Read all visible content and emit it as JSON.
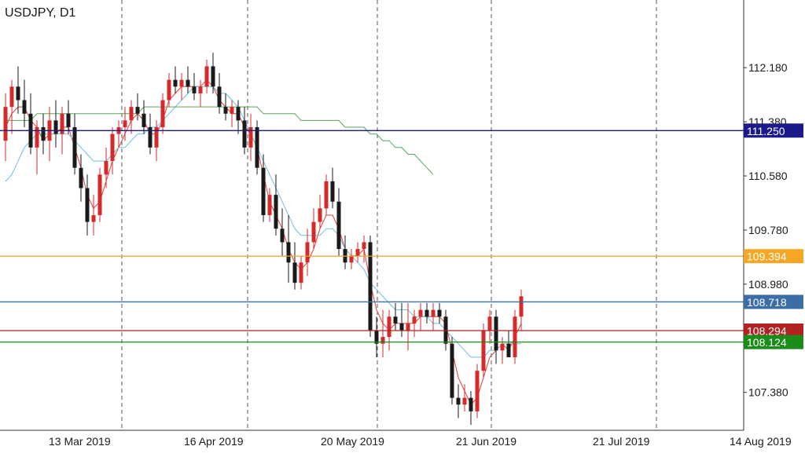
{
  "chart_data": {
    "type": "candlestick",
    "title": "USDJPY, D1",
    "symbol": "USDJPY",
    "timeframe": "D1",
    "y_ticks": [
      "112.180",
      "111.380",
      "110.580",
      "109.780",
      "108.980",
      "107.380"
    ],
    "y_tick_values": [
      112.18,
      111.38,
      110.58,
      109.78,
      108.98,
      107.38
    ],
    "x_ticks": [
      "13 Mar 2019",
      "16 Apr 2019",
      "20 May 2019",
      "21 Jun 2019",
      "21 Jul 2019",
      "14 Aug 2019"
    ],
    "ylim": [
      106.82,
      113.18
    ],
    "grid": "vertical dashed",
    "colors": {
      "bull": "#d42a2a",
      "bear": "#1a1a1a",
      "price_tag_border": "#888888"
    },
    "horizontal_levels": [
      {
        "value": 111.25,
        "label": "111.250",
        "color": "#1a1a8c"
      },
      {
        "value": 109.394,
        "label": "109.394",
        "color": "#f5a623"
      },
      {
        "value": 108.718,
        "label": "108.718",
        "color": "#3b6ea5"
      },
      {
        "value": 108.294,
        "label": "108.294",
        "color": "#b22222"
      },
      {
        "value": 108.124,
        "label": "108.124",
        "color": "#1a8c1a"
      }
    ],
    "candles": [
      [
        111.1,
        111.8,
        110.8,
        111.6
      ],
      [
        111.6,
        112.0,
        111.2,
        111.9
      ],
      [
        111.9,
        112.2,
        111.5,
        111.7
      ],
      [
        111.7,
        112.0,
        111.3,
        111.5
      ],
      [
        111.5,
        111.8,
        110.9,
        111.0
      ],
      [
        111.0,
        111.4,
        110.6,
        111.3
      ],
      [
        111.3,
        111.5,
        110.9,
        111.1
      ],
      [
        111.1,
        111.6,
        110.8,
        111.4
      ],
      [
        111.4,
        111.7,
        111.0,
        111.2
      ],
      [
        111.2,
        111.6,
        110.9,
        111.5
      ],
      [
        111.5,
        111.7,
        111.2,
        111.3
      ],
      [
        111.3,
        111.5,
        110.6,
        110.7
      ],
      [
        110.7,
        110.9,
        110.2,
        110.4
      ],
      [
        110.4,
        110.6,
        109.7,
        109.9
      ],
      [
        109.9,
        110.3,
        109.7,
        110.0
      ],
      [
        110.0,
        110.7,
        109.9,
        110.6
      ],
      [
        110.6,
        111.0,
        110.4,
        110.8
      ],
      [
        110.8,
        111.3,
        110.6,
        111.2
      ],
      [
        111.2,
        111.4,
        111.0,
        111.3
      ],
      [
        111.3,
        111.6,
        111.1,
        111.4
      ],
      [
        111.4,
        111.7,
        111.2,
        111.6
      ],
      [
        111.6,
        111.8,
        111.4,
        111.5
      ],
      [
        111.5,
        111.7,
        111.2,
        111.3
      ],
      [
        111.3,
        111.5,
        110.9,
        111.0
      ],
      [
        111.0,
        111.4,
        110.8,
        111.3
      ],
      [
        111.3,
        111.8,
        111.2,
        111.7
      ],
      [
        111.7,
        112.1,
        111.6,
        112.0
      ],
      [
        112.0,
        112.2,
        111.8,
        111.9
      ],
      [
        111.9,
        112.1,
        111.7,
        112.0
      ],
      [
        112.0,
        112.2,
        111.8,
        111.9
      ],
      [
        111.9,
        112.1,
        111.7,
        111.8
      ],
      [
        111.8,
        112.0,
        111.6,
        111.9
      ],
      [
        111.9,
        112.3,
        111.8,
        112.2
      ],
      [
        112.2,
        112.4,
        111.8,
        111.9
      ],
      [
        111.9,
        112.1,
        111.5,
        111.6
      ],
      [
        111.6,
        111.8,
        111.4,
        111.5
      ],
      [
        111.5,
        111.7,
        111.3,
        111.6
      ],
      [
        111.6,
        111.7,
        111.2,
        111.4
      ],
      [
        111.4,
        111.6,
        110.9,
        111.0
      ],
      [
        111.0,
        111.5,
        110.8,
        111.3
      ],
      [
        111.3,
        111.4,
        110.6,
        110.7
      ],
      [
        110.7,
        110.9,
        109.9,
        110.0
      ],
      [
        110.0,
        110.4,
        109.9,
        110.3
      ],
      [
        110.3,
        110.6,
        109.7,
        109.8
      ],
      [
        109.8,
        110.1,
        109.4,
        109.6
      ],
      [
        109.6,
        110.0,
        109.0,
        109.3
      ],
      [
        109.3,
        109.6,
        108.9,
        109.0
      ],
      [
        109.0,
        109.4,
        108.9,
        109.3
      ],
      [
        109.3,
        109.8,
        109.1,
        109.6
      ],
      [
        109.6,
        110.1,
        109.5,
        109.9
      ],
      [
        109.9,
        110.3,
        109.8,
        110.1
      ],
      [
        110.1,
        110.6,
        110.0,
        110.5
      ],
      [
        110.5,
        110.7,
        110.1,
        110.2
      ],
      [
        110.2,
        110.4,
        109.4,
        109.5
      ],
      [
        109.5,
        109.7,
        109.2,
        109.3
      ],
      [
        109.3,
        109.5,
        109.2,
        109.4
      ],
      [
        109.4,
        109.6,
        109.3,
        109.5
      ],
      [
        109.5,
        109.7,
        109.3,
        109.6
      ],
      [
        109.6,
        109.7,
        108.2,
        108.3
      ],
      [
        108.3,
        108.5,
        107.9,
        108.1
      ],
      [
        108.1,
        108.6,
        107.9,
        108.2
      ],
      [
        108.2,
        108.6,
        108.0,
        108.5
      ],
      [
        108.5,
        108.7,
        108.3,
        108.4
      ],
      [
        108.4,
        108.7,
        108.2,
        108.3
      ],
      [
        108.3,
        108.7,
        108.0,
        108.4
      ],
      [
        108.4,
        108.6,
        108.2,
        108.5
      ],
      [
        108.5,
        108.7,
        108.3,
        108.6
      ],
      [
        108.6,
        108.7,
        108.4,
        108.5
      ],
      [
        108.5,
        108.7,
        108.3,
        108.6
      ],
      [
        108.6,
        108.7,
        108.4,
        108.5
      ],
      [
        108.5,
        108.6,
        108.0,
        108.1
      ],
      [
        108.1,
        108.2,
        107.2,
        107.3
      ],
      [
        107.3,
        107.5,
        107.0,
        107.2
      ],
      [
        107.2,
        107.5,
        107.1,
        107.3
      ],
      [
        107.3,
        107.4,
        106.9,
        107.1
      ],
      [
        107.1,
        107.8,
        107.0,
        107.7
      ],
      [
        107.7,
        108.4,
        107.6,
        108.3
      ],
      [
        108.3,
        108.6,
        108.1,
        108.5
      ],
      [
        108.5,
        108.6,
        107.8,
        108.0
      ],
      [
        108.0,
        108.2,
        107.8,
        108.1
      ],
      [
        108.1,
        108.3,
        107.9,
        107.9
      ],
      [
        107.9,
        108.6,
        107.8,
        108.5
      ],
      [
        108.5,
        108.9,
        108.3,
        108.8
      ]
    ],
    "moving_averages": [
      {
        "color": "#e83a3a",
        "values": [
          111.3,
          111.5,
          111.6,
          111.6,
          111.4,
          111.3,
          111.1,
          111.2,
          111.2,
          111.3,
          111.3,
          111.0,
          110.7,
          110.3,
          110.1,
          110.2,
          110.5,
          110.8,
          111.0,
          111.2,
          111.4,
          111.5,
          111.4,
          111.2,
          111.2,
          111.4,
          111.7,
          111.8,
          111.9,
          111.9,
          111.9,
          111.9,
          112.0,
          111.9,
          111.7,
          111.6,
          111.5,
          111.5,
          111.3,
          111.2,
          111.0,
          110.6,
          110.2,
          110.0,
          109.8,
          109.5,
          109.3,
          109.2,
          109.3,
          109.5,
          109.8,
          110.0,
          110.0,
          109.8,
          109.5,
          109.4,
          109.4,
          109.5,
          109.0,
          108.6,
          108.4,
          108.3,
          108.4,
          108.4,
          108.4,
          108.4,
          108.5,
          108.5,
          108.5,
          108.5,
          108.4,
          108.0,
          107.6,
          107.4,
          107.2,
          107.3,
          107.6,
          107.9,
          108.0,
          108.1,
          108.0,
          108.2,
          108.4
        ]
      },
      {
        "color": "#6fbfe0",
        "values": [
          110.5,
          110.6,
          110.8,
          111.0,
          111.1,
          111.2,
          111.2,
          111.2,
          111.2,
          111.2,
          111.2,
          111.1,
          111.0,
          110.9,
          110.8,
          110.8,
          110.8,
          110.9,
          111.0,
          111.0,
          111.1,
          111.2,
          111.2,
          111.3,
          111.3,
          111.4,
          111.5,
          111.6,
          111.7,
          111.8,
          111.9,
          111.9,
          111.9,
          111.9,
          111.8,
          111.8,
          111.7,
          111.6,
          111.4,
          111.2,
          111.0,
          110.8,
          110.6,
          110.4,
          110.2,
          110.0,
          109.8,
          109.7,
          109.7,
          109.7,
          109.7,
          109.8,
          109.8,
          109.7,
          109.5,
          109.4,
          109.3,
          109.2,
          109.0,
          108.9,
          108.8,
          108.7,
          108.6,
          108.6,
          108.6,
          108.5,
          108.5,
          108.5,
          108.4,
          108.4,
          108.3,
          108.2,
          108.1,
          108.0,
          107.9,
          107.9,
          107.9,
          108.0,
          108.0,
          108.1,
          108.1,
          108.1,
          108.1
        ]
      },
      {
        "color": "#5aa55a",
        "values": [
          111.4,
          111.4,
          111.4,
          111.4,
          111.4,
          111.5,
          111.5,
          111.5,
          111.5,
          111.5,
          111.5,
          111.5,
          111.5,
          111.5,
          111.5,
          111.5,
          111.5,
          111.5,
          111.5,
          111.5,
          111.5,
          111.5,
          111.6,
          111.6,
          111.6,
          111.6,
          111.6,
          111.6,
          111.6,
          111.6,
          111.6,
          111.6,
          111.6,
          111.6,
          111.6,
          111.6,
          111.6,
          111.6,
          111.6,
          111.6,
          111.6,
          111.5,
          111.5,
          111.5,
          111.5,
          111.5,
          111.5,
          111.4,
          111.4,
          111.4,
          111.4,
          111.4,
          111.4,
          111.4,
          111.3,
          111.3,
          111.3,
          111.3,
          111.2,
          111.2,
          111.1,
          111.1,
          111.0,
          111.0,
          110.9,
          110.9,
          110.8,
          110.7,
          110.6
        ]
      }
    ]
  }
}
